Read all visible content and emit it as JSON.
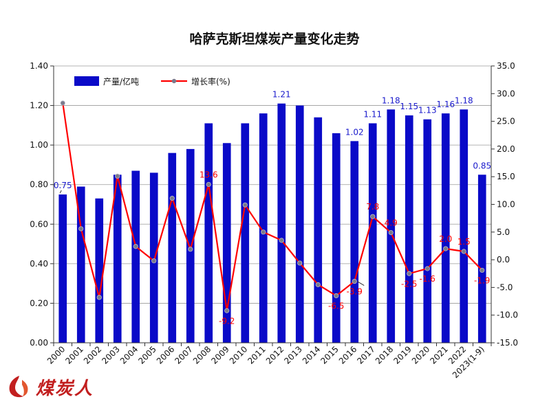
{
  "chart_data": {
    "type": "bar+line",
    "title": "哈萨克斯坦煤炭产量变化走势",
    "categories": [
      "2000",
      "2001",
      "2002",
      "2003",
      "2004",
      "2005",
      "2006",
      "2007",
      "2008",
      "2009",
      "2010",
      "2011",
      "2012",
      "2013",
      "2014",
      "2015",
      "2016",
      "2017",
      "2018",
      "2019",
      "2020",
      "2021",
      "2022",
      "2023(1-9)"
    ],
    "series": [
      {
        "name": "产量/亿吨",
        "axis": "left",
        "kind": "bar",
        "color": "#0a0ac8",
        "values": [
          0.75,
          0.79,
          0.73,
          0.85,
          0.87,
          0.86,
          0.96,
          0.98,
          1.11,
          1.01,
          1.11,
          1.16,
          1.21,
          1.2,
          1.14,
          1.06,
          1.02,
          1.11,
          1.18,
          1.15,
          1.13,
          1.16,
          1.18,
          0.85
        ]
      },
      {
        "name": "增长率(%)",
        "axis": "right",
        "kind": "line",
        "color": "#ff0000",
        "marker_color": "#7a7a8c",
        "values": [
          28.3,
          5.6,
          -6.8,
          15.1,
          2.4,
          -0.2,
          11.1,
          1.9,
          13.6,
          -9.2,
          9.9,
          5.0,
          3.5,
          -0.6,
          -4.5,
          -6.5,
          -3.9,
          7.8,
          4.9,
          -2.5,
          -1.6,
          2.0,
          1.5,
          -1.9
        ]
      }
    ],
    "bar_labels": [
      {
        "index": 0,
        "text": "0.75"
      },
      {
        "index": 12,
        "text": "1.21"
      },
      {
        "index": 16,
        "text": "1.02"
      },
      {
        "index": 17,
        "text": "1.11"
      },
      {
        "index": 18,
        "text": "1.18"
      },
      {
        "index": 19,
        "text": "1.15"
      },
      {
        "index": 20,
        "text": "1.13"
      },
      {
        "index": 21,
        "text": "1.16"
      },
      {
        "index": 22,
        "text": "1.18"
      },
      {
        "index": 23,
        "text": "0.85"
      }
    ],
    "line_labels": [
      {
        "index": 8,
        "text": "13.6"
      },
      {
        "index": 9,
        "text": "-9.2"
      },
      {
        "index": 15,
        "text": "-6.5"
      },
      {
        "index": 16,
        "text": "-3.9"
      },
      {
        "index": 17,
        "text": "7.8"
      },
      {
        "index": 18,
        "text": "4.9"
      },
      {
        "index": 19,
        "text": "-2.5"
      },
      {
        "index": 20,
        "text": "-1.6"
      },
      {
        "index": 21,
        "text": "2.0"
      },
      {
        "index": 22,
        "text": "1.5"
      },
      {
        "index": 23,
        "text": "-1.9"
      }
    ],
    "y_left": {
      "min": 0,
      "max": 1.4,
      "step": 0.2,
      "ticks": [
        "0.00",
        "0.20",
        "0.40",
        "0.60",
        "0.80",
        "1.00",
        "1.20",
        "1.40"
      ]
    },
    "y_right": {
      "min": -15,
      "max": 35,
      "step": 5,
      "ticks": [
        "-15.0",
        "-10.0",
        "-5.0",
        "0.0",
        "5.0",
        "10.0",
        "15.0",
        "20.0",
        "25.0",
        "30.0",
        "35.0"
      ]
    },
    "grid": true,
    "legend_position": "top-left"
  },
  "watermark": {
    "text": "煤炭人",
    "logo": "coal-flame-logo"
  }
}
